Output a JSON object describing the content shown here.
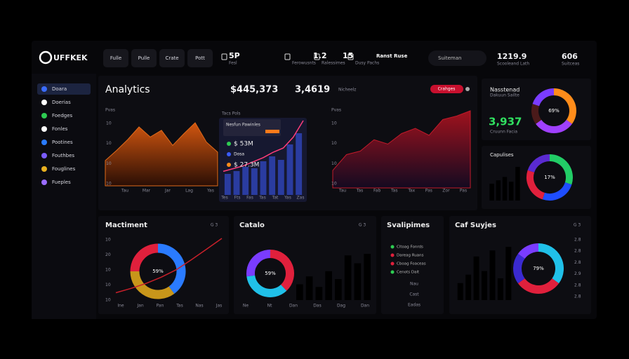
{
  "header": {
    "logo": "UFFKEK",
    "nav": [
      "Fulle",
      "Pulle",
      "Crate",
      "Pott"
    ],
    "stats": [
      {
        "value": "5P",
        "label": "Fesl"
      },
      {
        "value": "1.2",
        "label": "Ferowusnts"
      },
      {
        "value": "15",
        "label": "Ralessimes"
      },
      {
        "value": "Ranst Ruse",
        "label": "Dusy Pachs"
      }
    ],
    "search": "Suiteman",
    "total": "1219.9",
    "total_label": "Scooleand Lath",
    "count": "606",
    "count_label": "Suitceas"
  },
  "sidebar": [
    "Doara",
    "Doerias",
    "Foedges",
    "Fonles",
    "Pootines",
    "Fouthbes",
    "Fouglines",
    "Fueples"
  ],
  "analytics": {
    "title": "Analytics",
    "amount": "$445,373",
    "count": "3,4619",
    "count_label": "Nicheelz",
    "badge": "Crahges",
    "left_chart": {
      "label": "Pvas",
      "values": [
        30,
        42,
        55,
        70,
        58,
        66,
        48,
        62,
        75,
        52,
        40
      ],
      "xlabels": [
        "Tau",
        "Mar",
        "Jar",
        "Lag",
        "Yas"
      ],
      "ylabels": [
        "10",
        "10",
        "10",
        "10"
      ]
    },
    "overlay": {
      "label": "Tacs Pols",
      "tooltip": "Nesfun Pawinles",
      "items": [
        "$ 53M",
        "Dosa",
        "$ 27.3M"
      ],
      "bars": [
        30,
        34,
        40,
        38,
        48,
        55,
        50,
        72,
        88
      ],
      "line": [
        18,
        22,
        26,
        32,
        38,
        46,
        52,
        68,
        92
      ],
      "xlabels": [
        "Tes",
        "Fts",
        "Fas",
        "Tas",
        "Tat",
        "Yas",
        "Zas"
      ]
    },
    "right_chart": {
      "label": "Pvas",
      "values": [
        20,
        38,
        42,
        55,
        50,
        62,
        68,
        60,
        78,
        82,
        88
      ],
      "xlabels": [
        "Tau",
        "Tas",
        "Fab",
        "Tas",
        "Tax",
        "Pas",
        "Zor",
        "Pas"
      ],
      "ylabels": [
        "10",
        "10",
        "10",
        "10"
      ]
    }
  },
  "cards": {
    "nas": {
      "title": "Nasstenad",
      "subtitle": "Dakuun Sailte",
      "big": "3,937",
      "big_label": "Cruunn Facia",
      "center": "69%",
      "segments": [
        35,
        30,
        15,
        20
      ],
      "colors": [
        "#ff8c1a",
        "#a040ff",
        "#4a1a1a",
        "#7a3cff"
      ]
    },
    "cap": {
      "title": "Capulises",
      "center": "17%",
      "bars": [
        25,
        30,
        35,
        28,
        50
      ],
      "bar_colors": [
        "#2ecc52",
        "#d9223a",
        "#2ecc52",
        "#d9223a",
        "#d9223a"
      ],
      "segments": [
        30,
        25,
        25,
        20
      ],
      "colors": [
        "#22cc66",
        "#1e4dff",
        "#e0203c",
        "#5a2ad0"
      ]
    },
    "mac": {
      "title": "Mactiment",
      "icon": "G 3",
      "center": "59%",
      "segments": [
        40,
        35,
        25
      ],
      "colors": [
        "#2a7bff",
        "#c8961a",
        "#e0203c"
      ],
      "line": [
        5,
        12,
        20,
        30,
        42,
        58,
        75,
        92
      ],
      "ylabels": [
        "10",
        "20",
        "10",
        "10",
        "10"
      ],
      "xlabels": [
        "Ine",
        "Jan",
        "Pan",
        "Tas",
        "Nas",
        "Jas"
      ]
    },
    "cat": {
      "title": "Catalo",
      "icon": "G 3",
      "center": "59%",
      "segments": [
        38,
        35,
        27
      ],
      "colors": [
        "#e0203c",
        "#20c0e8",
        "#7a3cff"
      ],
      "bars": [
        30,
        45,
        25,
        55,
        40,
        85,
        70,
        88
      ],
      "bar_colors": [
        "#2a5bff",
        "#e0203c",
        "#2a5bff",
        "#e0203c",
        "#2a5bff",
        "#2a5bff",
        "#e0203c",
        "#2a5bff"
      ],
      "xlabels": [
        "Ne",
        "Nt",
        "Dan",
        "Das",
        "Dag",
        "Dan"
      ]
    },
    "sva": {
      "title": "Svalipimes",
      "legend": [
        "Cltoag Fonrds",
        "Dareag Ruans",
        "Cboag Foaceas",
        "Cenots Dalt"
      ],
      "legend_colors": [
        "#2ecc52",
        "#e0203c",
        "#e0203c",
        "#2ecc52"
      ],
      "notes": [
        "Nau",
        "Cast",
        "Eadas"
      ]
    },
    "caf": {
      "title": "Caf Suyjes",
      "icon": "G 3",
      "center": "79%",
      "segments": [
        35,
        30,
        20,
        15
      ],
      "colors": [
        "#20c0e8",
        "#e0203c",
        "#3a2ad0",
        "#7a3cff"
      ],
      "bars": [
        28,
        42,
        72,
        48,
        82,
        36,
        88
      ],
      "bar_colors": [
        "#c8961a",
        "#c8961a",
        "#c8961a",
        "#1f6a4a",
        "#c8961a",
        "#e0203c",
        "#c8961a"
      ],
      "ylabels": [
        "2.8",
        "2.8",
        "2.8",
        "2.9",
        "2.8",
        "2.8"
      ]
    }
  }
}
